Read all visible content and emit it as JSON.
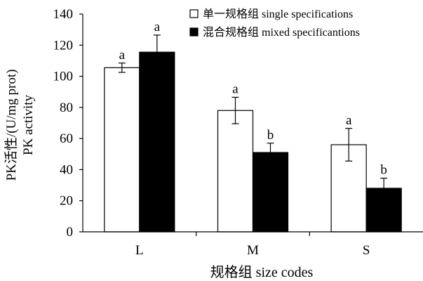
{
  "chart_data": {
    "type": "bar",
    "title": "",
    "xlabel": "规格组 size codes",
    "ylabel": [
      "PK活性/(U/mg prot)",
      "PK activity"
    ],
    "categories": [
      "L",
      "M",
      "S"
    ],
    "ylim": [
      0,
      140
    ],
    "yticks": [
      0,
      20,
      40,
      60,
      80,
      100,
      120,
      140
    ],
    "grid": false,
    "legend_position": "top-right",
    "series": [
      {
        "name": "单一规格组 single specifications",
        "color": "#ffffff",
        "values": [
          105.5,
          78,
          56
        ],
        "errors": [
          3,
          8.5,
          10.5
        ],
        "labels": [
          "a",
          "a",
          "a"
        ]
      },
      {
        "name": "混合规格组 mixed specificantions",
        "color": "#000000",
        "values": [
          115.5,
          51,
          28
        ],
        "errors": [
          11,
          6,
          6.5
        ],
        "labels": [
          "a",
          "b",
          "b"
        ]
      }
    ]
  }
}
